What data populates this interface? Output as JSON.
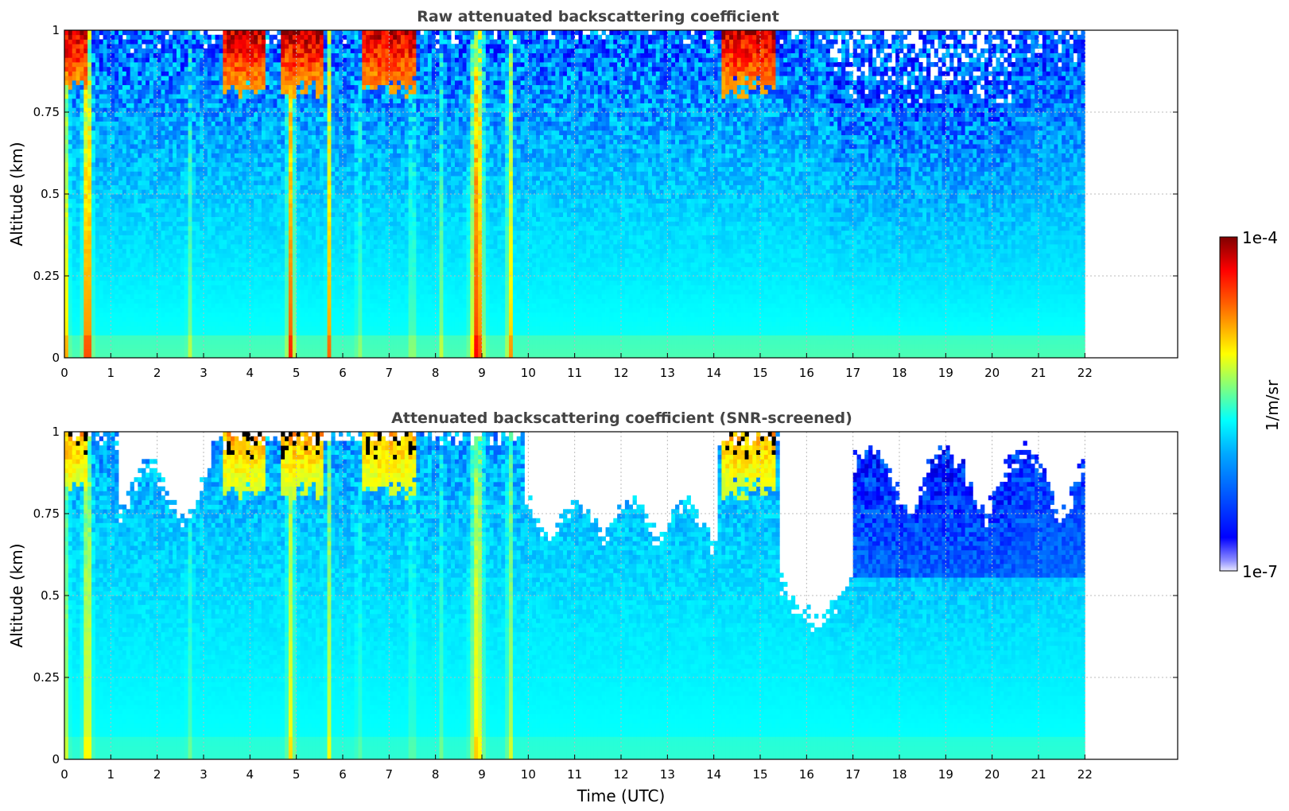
{
  "chart_data": [
    {
      "type": "heatmap",
      "title": "Raw attenuated backscattering coefficient",
      "xlabel": "",
      "ylabel": "Altitude (km)",
      "xlim": [
        0,
        24
      ],
      "ylim": [
        0,
        1
      ],
      "data_xlim": [
        0,
        22
      ],
      "xticks": [
        "0",
        "1",
        "2",
        "3",
        "4",
        "5",
        "6",
        "7",
        "8",
        "9",
        "10",
        "11",
        "12",
        "13",
        "14",
        "15",
        "16",
        "17",
        "18",
        "19",
        "20",
        "21",
        "22"
      ],
      "yticks": [
        "0",
        "0.25",
        "0.5",
        "0.75",
        "1"
      ],
      "grid": true,
      "screened": false
    },
    {
      "type": "heatmap",
      "title": "Attenuated backscattering coefficient (SNR-screened)",
      "xlabel": "Time (UTC)",
      "ylabel": "Altitude (km)",
      "xlim": [
        0,
        24
      ],
      "ylim": [
        0,
        1
      ],
      "data_xlim": [
        0,
        22
      ],
      "xticks": [
        "0",
        "1",
        "2",
        "3",
        "4",
        "5",
        "6",
        "7",
        "8",
        "9",
        "10",
        "11",
        "12",
        "13",
        "14",
        "15",
        "16",
        "17",
        "18",
        "19",
        "20",
        "21",
        "22"
      ],
      "yticks": [
        "0",
        "0.25",
        "0.5",
        "0.75",
        "1"
      ],
      "grid": true,
      "screened": true
    }
  ],
  "colorbar": {
    "label": "1/m/sr",
    "max_label": "1e-4",
    "min_label": "1e-7",
    "colormap": "jet",
    "scale": "log"
  },
  "notable_features": {
    "aerosol_plumes_hours": [
      0.5,
      4.9,
      5.7,
      8.9,
      9.6
    ],
    "cloud_periods_hours": [
      [
        0,
        0.6
      ],
      [
        3.5,
        4.4
      ],
      [
        4.7,
        5.6
      ],
      [
        6.4,
        7.6
      ],
      [
        14.2,
        15.3
      ]
    ]
  }
}
